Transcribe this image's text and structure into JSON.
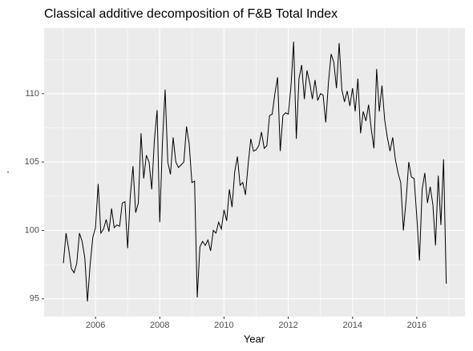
{
  "chart_data": {
    "type": "line",
    "title": "Classical additive decomposition of F&B Total Index",
    "xlabel": "Year",
    "ylabel": ".",
    "x": [
      2005,
      2005.083,
      2005.167,
      2005.25,
      2005.333,
      2005.417,
      2005.5,
      2005.583,
      2005.667,
      2005.75,
      2005.833,
      2005.917,
      2006,
      2006.083,
      2006.167,
      2006.25,
      2006.333,
      2006.417,
      2006.5,
      2006.583,
      2006.667,
      2006.75,
      2006.833,
      2006.917,
      2007,
      2007.083,
      2007.167,
      2007.25,
      2007.333,
      2007.417,
      2007.5,
      2007.583,
      2007.667,
      2007.75,
      2007.833,
      2007.917,
      2008,
      2008.083,
      2008.167,
      2008.25,
      2008.333,
      2008.417,
      2008.5,
      2008.583,
      2008.667,
      2008.75,
      2008.833,
      2008.917,
      2009,
      2009.083,
      2009.167,
      2009.25,
      2009.333,
      2009.417,
      2009.5,
      2009.583,
      2009.667,
      2009.75,
      2009.833,
      2009.917,
      2010,
      2010.083,
      2010.167,
      2010.25,
      2010.333,
      2010.417,
      2010.5,
      2010.583,
      2010.667,
      2010.75,
      2010.833,
      2010.917,
      2011,
      2011.083,
      2011.167,
      2011.25,
      2011.333,
      2011.417,
      2011.5,
      2011.583,
      2011.667,
      2011.75,
      2011.833,
      2011.917,
      2012,
      2012.083,
      2012.167,
      2012.25,
      2012.333,
      2012.417,
      2012.5,
      2012.583,
      2012.667,
      2012.75,
      2012.833,
      2012.917,
      2013,
      2013.083,
      2013.167,
      2013.25,
      2013.333,
      2013.417,
      2013.5,
      2013.583,
      2013.667,
      2013.75,
      2013.833,
      2013.917,
      2014,
      2014.083,
      2014.167,
      2014.25,
      2014.333,
      2014.417,
      2014.5,
      2014.583,
      2014.667,
      2014.75,
      2014.833,
      2014.917,
      2015,
      2015.083,
      2015.167,
      2015.25,
      2015.333,
      2015.417,
      2015.5,
      2015.583,
      2015.667,
      2015.75,
      2015.833,
      2015.917,
      2016,
      2016.083,
      2016.167,
      2016.25,
      2016.333,
      2016.417,
      2016.5,
      2016.583,
      2016.667,
      2016.75,
      2016.833,
      2016.917
    ],
    "values": [
      97.6,
      99.8,
      98.6,
      97.2,
      96.9,
      97.6,
      99.8,
      99.2,
      98.0,
      94.8,
      97.5,
      99.5,
      100.2,
      103.4,
      99.8,
      100.1,
      100.8,
      99.9,
      101.6,
      100.2,
      100.4,
      100.3,
      102.0,
      102.1,
      98.7,
      102.5,
      104.7,
      101.3,
      102.0,
      107.1,
      103.8,
      105.5,
      105.0,
      103.0,
      106.6,
      108.8,
      100.6,
      106.4,
      110.3,
      105.0,
      104.1,
      106.8,
      105.0,
      104.6,
      104.8,
      105.0,
      107.6,
      106.3,
      103.5,
      103.6,
      95.1,
      98.8,
      99.2,
      98.9,
      99.3,
      98.5,
      100.0,
      99.8,
      100.6,
      100.1,
      101.5,
      100.7,
      103.0,
      101.7,
      104.3,
      105.4,
      103.3,
      103.5,
      102.6,
      104.8,
      106.7,
      105.8,
      105.9,
      106.2,
      107.2,
      106.0,
      106.2,
      108.4,
      108.5,
      110.0,
      111.2,
      105.8,
      108.4,
      108.6,
      108.5,
      110.5,
      113.8,
      106.7,
      111.1,
      112.1,
      109.6,
      111.7,
      110.8,
      109.6,
      111.0,
      109.5,
      110.0,
      109.9,
      107.9,
      110.8,
      112.9,
      112.3,
      110.4,
      113.7,
      110.3,
      109.4,
      110.2,
      109.1,
      110.4,
      108.7,
      111.1,
      107.1,
      108.7,
      108.0,
      109.2,
      107.4,
      106.0,
      111.8,
      108.7,
      110.6,
      108.1,
      106.8,
      105.8,
      106.8,
      105.2,
      104.2,
      103.5,
      100.0,
      102.2,
      105.0,
      103.9,
      103.8,
      101.0,
      97.8,
      103.0,
      104.2,
      102.0,
      103.2,
      101.9,
      98.9,
      104.0,
      100.4,
      105.2,
      96.1
    ],
    "color": "#000000",
    "xlim": [
      2004.4,
      2017.5
    ],
    "xticks": [
      2006,
      2008,
      2010,
      2012,
      2014,
      2016
    ],
    "xminor": [
      2005,
      2007,
      2009,
      2011,
      2013,
      2015,
      2017
    ],
    "ylim": [
      93.7,
      114.8
    ],
    "yticks": [
      95,
      100,
      105,
      110
    ],
    "yminor": [
      97.5,
      102.5,
      107.5,
      112.5
    ],
    "grid": true
  }
}
